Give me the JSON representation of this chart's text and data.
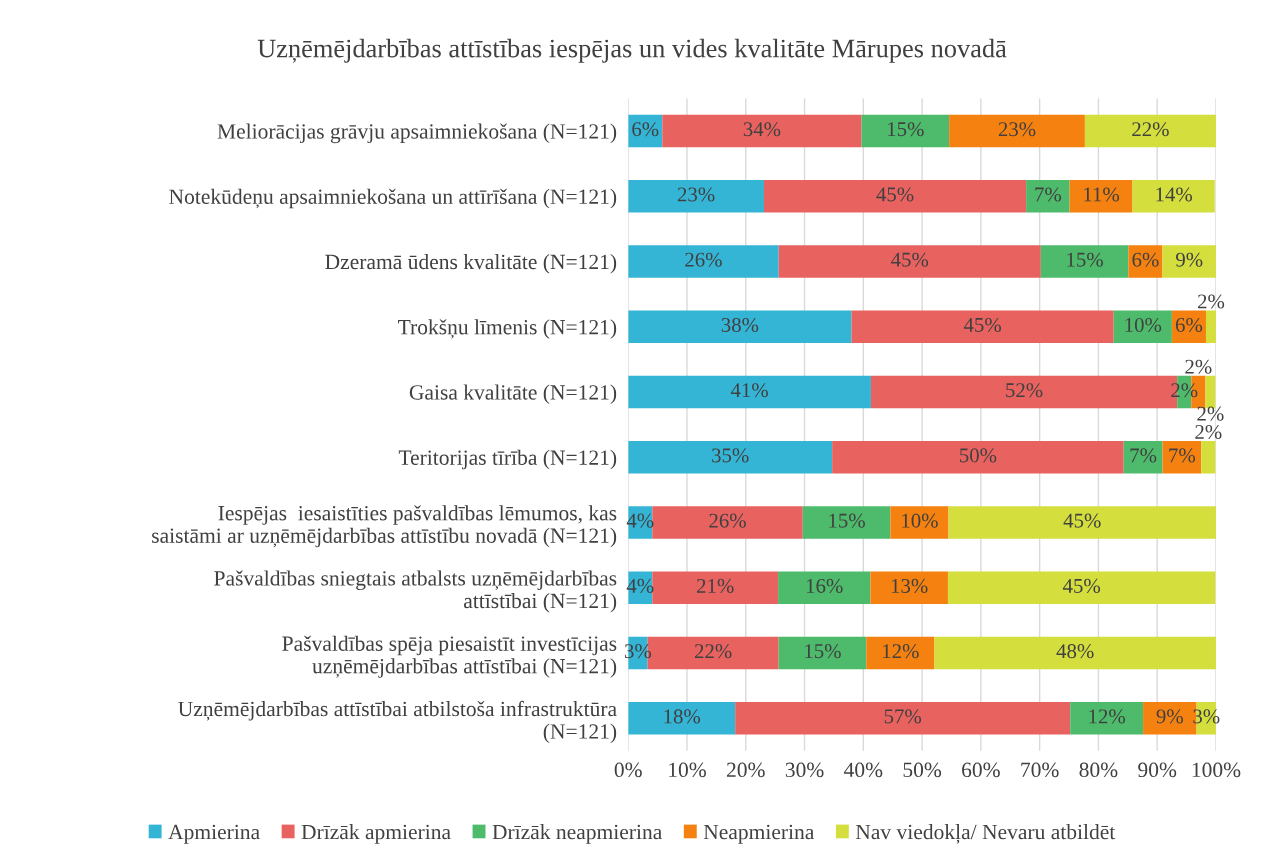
{
  "chart_data": {
    "type": "bar",
    "orientation": "horizontal",
    "stacked": true,
    "title": "Uzņēmējdarbības attīstības iespējas un vides kvalitāte Mārupes novadā",
    "categories": [
      "Meliorācijas grāvju apsaimniekošana (N=121)",
      "Notekūdeņu apsaimniekošana un attīrīšana (N=121)",
      "Dzeramā ūdens kvalitāte (N=121)",
      "Trokšņu līmenis (N=121)",
      "Gaisa kvalitāte (N=121)",
      "Teritorijas tīrība (N=121)",
      "Iespējas  iesaistīties pašvaldības lēmumos, kas\nsaistāmi ar uzņēmējdarbības attīstību novadā (N=121)",
      "Pašvaldības sniegtais atbalsts uzņēmējdarbības\nattīstībai (N=121)",
      "Pašvaldības spēja piesaistīt investīcijas\nuzņēmējdarbības attīstībai (N=121)",
      "Uzņēmējdarbības attīstībai atbilstoša infrastruktūra\n(N=121)"
    ],
    "series": [
      {
        "name": "Apmierina",
        "color": "#35b5d6",
        "values": [
          5.8,
          23.1,
          25.6,
          38.0,
          41.3,
          34.7,
          4.1,
          4.1,
          3.3,
          18.2
        ],
        "value_labels": [
          "6%",
          "23%",
          "26%",
          "38%",
          "41%",
          "35%",
          "4%",
          "4%",
          "3%",
          "18%"
        ]
      },
      {
        "name": "Drīzāk apmierina",
        "color": "#e8625f",
        "values": [
          33.9,
          44.6,
          44.6,
          44.6,
          52.1,
          49.6,
          25.6,
          21.4,
          22.3,
          57.0
        ],
        "value_labels": [
          "34%",
          "45%",
          "45%",
          "45%",
          "52%",
          "50%",
          "26%",
          "21%",
          "22%",
          "57%"
        ]
      },
      {
        "name": "Drīzāk neapmierina",
        "color": "#4dbb6b",
        "values": [
          14.9,
          7.4,
          14.9,
          9.9,
          2.4,
          6.6,
          14.9,
          15.7,
          14.9,
          12.4
        ],
        "value_labels": [
          "15%",
          "7%",
          "15%",
          "10%",
          "2%",
          "7%",
          "15%",
          "16%",
          "15%",
          "12%"
        ]
      },
      {
        "name": "Neapmierina",
        "color": "#f58110",
        "values": [
          23.1,
          10.7,
          5.8,
          5.8,
          2.4,
          6.6,
          9.9,
          13.2,
          11.6,
          9.1
        ],
        "value_labels": [
          "23%",
          "11%",
          "6%",
          "6%",
          "2%",
          "7%",
          "10%",
          "13%",
          "12%",
          "9%"
        ]
      },
      {
        "name": "Nav viedokļa/ Nevaru atbildēt",
        "color": "#d4de3d",
        "values": [
          22.3,
          14.0,
          9.1,
          1.7,
          1.7,
          2.4,
          45.5,
          45.5,
          47.9,
          3.3
        ],
        "value_labels": [
          "22%",
          "14%",
          "9%",
          "2%",
          "2%",
          "2%",
          "45%",
          "45%",
          "48%",
          "3%"
        ]
      }
    ],
    "xlim": [
      0,
      100
    ],
    "xticks": [
      {
        "value": 0,
        "label": "0%"
      },
      {
        "value": 10,
        "label": "10%"
      },
      {
        "value": 20,
        "label": "20%"
      },
      {
        "value": 30,
        "label": "30%"
      },
      {
        "value": 40,
        "label": "40%"
      },
      {
        "value": 50,
        "label": "50%"
      },
      {
        "value": 60,
        "label": "60%"
      },
      {
        "value": 70,
        "label": "70%"
      },
      {
        "value": 80,
        "label": "80%"
      },
      {
        "value": 90,
        "label": "90%"
      },
      {
        "value": 100,
        "label": "100%"
      }
    ],
    "grid": "x",
    "legend": "bottom"
  }
}
